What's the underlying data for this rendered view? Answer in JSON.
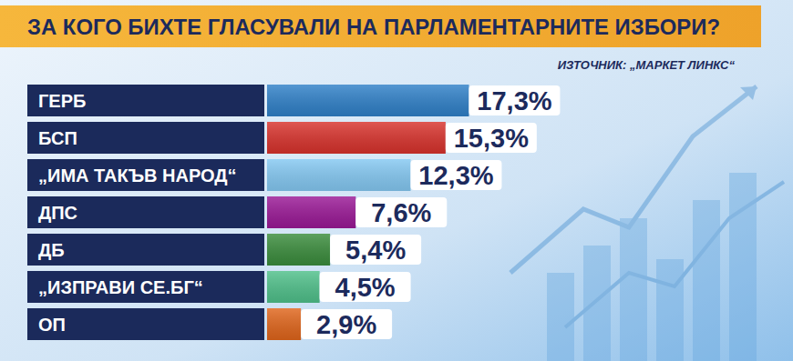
{
  "chart_data": {
    "type": "bar",
    "title": "ЗА КОГО БИХТЕ ГЛАСУВАЛИ НА ПАРЛАМЕНТАРНИТЕ ИЗБОРИ?",
    "subtitle": "ИЗТОЧНИК: „МАРКЕТ ЛИНКС“",
    "orientation": "horizontal",
    "categories": [
      "ГЕРБ",
      "БСП",
      "„ИМА ТАКЪВ НАРОД“",
      "ДПС",
      "ДБ",
      "„ИЗПРАВИ СЕ.БГ“",
      "ОП"
    ],
    "values": [
      17.3,
      15.3,
      12.3,
      7.6,
      5.4,
      4.5,
      2.9
    ],
    "value_labels": [
      "17,3%",
      "15,3%",
      "12,3%",
      "7,6%",
      "5,4%",
      "4,5%",
      "2,9%"
    ],
    "colors": [
      "#2f80c8",
      "#d8322c",
      "#84c8f2",
      "#9a1896",
      "#3a8c3c",
      "#4fc08a",
      "#e0651b"
    ],
    "ylim": [
      0,
      30
    ],
    "data_labels": true
  }
}
